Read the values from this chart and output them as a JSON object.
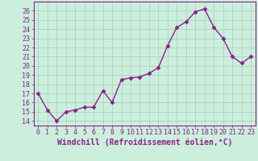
{
  "x": [
    0,
    1,
    2,
    3,
    4,
    5,
    6,
    7,
    8,
    9,
    10,
    11,
    12,
    13,
    14,
    15,
    16,
    17,
    18,
    19,
    20,
    21,
    22,
    23
  ],
  "y": [
    17,
    15.2,
    14,
    15,
    15.2,
    15.5,
    15.5,
    17.3,
    16,
    18.5,
    18.7,
    18.8,
    19.2,
    19.8,
    22.2,
    24.2,
    24.8,
    25.9,
    26.2,
    24.2,
    23.0,
    21.0,
    20.3,
    21.0
  ],
  "line_color": "#882288",
  "marker": "D",
  "marker_size": 2.5,
  "background_color": "#cceedd",
  "grid_color": "#aaccbb",
  "xlabel": "Windchill (Refroidissement éolien,°C)",
  "xlim": [
    -0.5,
    23.5
  ],
  "ylim": [
    13.5,
    27.0
  ],
  "yticks": [
    14,
    15,
    16,
    17,
    18,
    19,
    20,
    21,
    22,
    23,
    24,
    25,
    26
  ],
  "xticks": [
    0,
    1,
    2,
    3,
    4,
    5,
    6,
    7,
    8,
    9,
    10,
    11,
    12,
    13,
    14,
    15,
    16,
    17,
    18,
    19,
    20,
    21,
    22,
    23
  ],
  "axis_color": "#882288",
  "tick_color": "#882288",
  "xlabel_color": "#882288",
  "xlabel_fontsize": 7.0,
  "tick_fontsize": 6.0,
  "line_width": 1.0
}
